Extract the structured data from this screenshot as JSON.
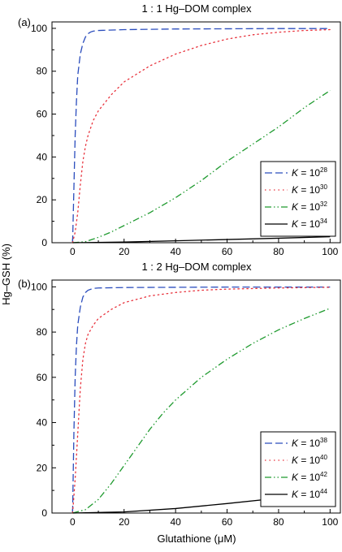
{
  "figure": {
    "shared_ylabel": "Hg–GSH (%)",
    "shared_xlabel": "Glutathione (μM)"
  },
  "chart_data": [
    {
      "type": "line",
      "panel_label": "(a)",
      "title": "1 : 1 Hg–DOM complex",
      "xlim": [
        -8,
        104
      ],
      "ylim": [
        0,
        103
      ],
      "xticks": [
        0,
        20,
        40,
        60,
        80,
        100
      ],
      "yticks": [
        0,
        20,
        40,
        60,
        80,
        100
      ],
      "grid": false,
      "legend_position": "lower-right",
      "series": [
        {
          "legend_prefix": "K = 10",
          "legend_exp": "28",
          "color": "#2b4dbd",
          "dash": "dashed",
          "points": [
            [
              0,
              0
            ],
            [
              0.5,
              25
            ],
            [
              1,
              50
            ],
            [
              1.5,
              66
            ],
            [
              2,
              78
            ],
            [
              3,
              88
            ],
            [
              4,
              93
            ],
            [
              5,
              96
            ],
            [
              6,
              97.5
            ],
            [
              7,
              98.3
            ],
            [
              8,
              98.7
            ],
            [
              10,
              99
            ],
            [
              20,
              99.4
            ],
            [
              40,
              99.7
            ],
            [
              60,
              99.8
            ],
            [
              80,
              99.9
            ],
            [
              100,
              99.9
            ]
          ]
        },
        {
          "legend_prefix": "K = 10",
          "legend_exp": "30",
          "color": "#e8323c",
          "dash": "dotted",
          "points": [
            [
              0,
              0
            ],
            [
              1,
              5
            ],
            [
              2,
              14
            ],
            [
              3,
              27
            ],
            [
              4,
              38
            ],
            [
              5,
              45
            ],
            [
              6,
              50
            ],
            [
              8,
              57
            ],
            [
              10,
              61.5
            ],
            [
              15,
              69
            ],
            [
              20,
              75
            ],
            [
              30,
              82.5
            ],
            [
              40,
              88
            ],
            [
              50,
              92
            ],
            [
              60,
              95
            ],
            [
              70,
              97
            ],
            [
              80,
              98.2
            ],
            [
              90,
              99
            ],
            [
              100,
              99.4
            ]
          ]
        },
        {
          "legend_prefix": "K = 10",
          "legend_exp": "32",
          "color": "#1e9a2e",
          "dash": "dashdotdot",
          "points": [
            [
              0,
              0
            ],
            [
              5,
              0.5
            ],
            [
              10,
              2.5
            ],
            [
              15,
              5
            ],
            [
              20,
              8
            ],
            [
              30,
              14
            ],
            [
              40,
              21
            ],
            [
              50,
              29
            ],
            [
              60,
              38
            ],
            [
              70,
              46
            ],
            [
              80,
              54
            ],
            [
              90,
              63
            ],
            [
              100,
              71
            ]
          ]
        },
        {
          "legend_prefix": "K = 10",
          "legend_exp": "34",
          "color": "#000000",
          "dash": "solid",
          "points": [
            [
              0,
              0
            ],
            [
              20,
              0.3
            ],
            [
              40,
              0.9
            ],
            [
              60,
              1.5
            ],
            [
              80,
              2.1
            ],
            [
              100,
              2.8
            ]
          ]
        }
      ]
    },
    {
      "type": "line",
      "panel_label": "(b)",
      "title": "1 : 2 Hg–DOM complex",
      "xlim": [
        -8,
        104
      ],
      "ylim": [
        0,
        103
      ],
      "xticks": [
        0,
        20,
        40,
        60,
        80,
        100
      ],
      "yticks": [
        0,
        20,
        40,
        60,
        80,
        100
      ],
      "grid": false,
      "legend_position": "lower-right",
      "series": [
        {
          "legend_prefix": "K = 10",
          "legend_exp": "38",
          "color": "#2b4dbd",
          "dash": "dashed",
          "points": [
            [
              0,
              0
            ],
            [
              0.5,
              35
            ],
            [
              1,
              60
            ],
            [
              1.5,
              74
            ],
            [
              2,
              83
            ],
            [
              3,
              91
            ],
            [
              4,
              95.5
            ],
            [
              5,
              97.5
            ],
            [
              6,
              98.5
            ],
            [
              8,
              99.3
            ],
            [
              10,
              99.5
            ],
            [
              20,
              99.7
            ],
            [
              40,
              99.8
            ],
            [
              60,
              99.9
            ],
            [
              100,
              99.9
            ]
          ]
        },
        {
          "legend_prefix": "K = 10",
          "legend_exp": "40",
          "color": "#e8323c",
          "dash": "dotted",
          "points": [
            [
              0,
              0
            ],
            [
              1,
              15
            ],
            [
              2,
              35
            ],
            [
              3,
              55
            ],
            [
              4,
              68
            ],
            [
              5,
              75
            ],
            [
              6,
              79
            ],
            [
              8,
              83
            ],
            [
              10,
              86
            ],
            [
              15,
              90
            ],
            [
              20,
              93
            ],
            [
              30,
              96
            ],
            [
              40,
              97.5
            ],
            [
              50,
              98.5
            ],
            [
              60,
              99
            ],
            [
              80,
              99.5
            ],
            [
              100,
              99.8
            ]
          ]
        },
        {
          "legend_prefix": "K = 10",
          "legend_exp": "42",
          "color": "#1e9a2e",
          "dash": "dashdotdot",
          "points": [
            [
              0,
              0
            ],
            [
              5,
              1.5
            ],
            [
              10,
              6
            ],
            [
              15,
              13
            ],
            [
              20,
              21
            ],
            [
              25,
              29
            ],
            [
              30,
              37
            ],
            [
              35,
              44
            ],
            [
              40,
              50
            ],
            [
              50,
              60
            ],
            [
              60,
              68
            ],
            [
              70,
              75
            ],
            [
              80,
              81
            ],
            [
              90,
              86
            ],
            [
              100,
              90.5
            ]
          ]
        },
        {
          "legend_prefix": "K = 10",
          "legend_exp": "44",
          "color": "#000000",
          "dash": "solid",
          "points": [
            [
              0,
              0
            ],
            [
              20,
              0.5
            ],
            [
              40,
              2
            ],
            [
              60,
              4.2
            ],
            [
              80,
              6.6
            ],
            [
              100,
              9.2
            ]
          ]
        }
      ]
    }
  ]
}
